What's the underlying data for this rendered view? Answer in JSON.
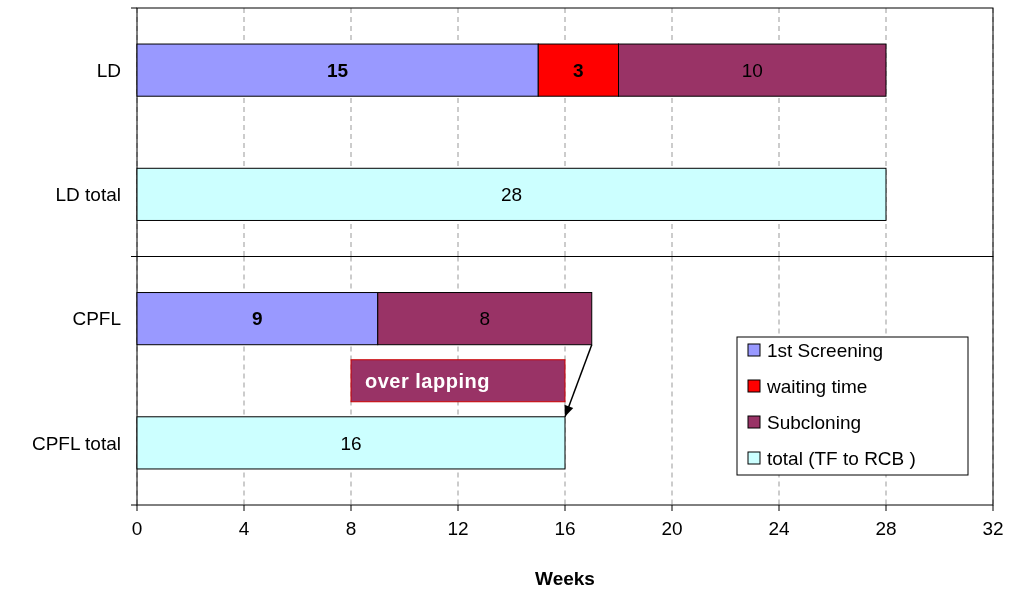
{
  "chart_data": [
    {
      "type": "bar",
      "orientation": "horizontal",
      "stacked": true,
      "categories": [
        "LD",
        "LD total"
      ],
      "series": [
        {
          "color": "#9999ff",
          "values": [
            15,
            null
          ]
        },
        {
          "color": "#ff0000",
          "values": [
            3,
            null
          ]
        },
        {
          "color": "#993366",
          "values": [
            10,
            null
          ]
        },
        {
          "color": "#ccffff",
          "values": [
            null,
            28
          ]
        }
      ],
      "xlim": [
        0,
        32
      ],
      "xticks": [
        0,
        4,
        8,
        12,
        16,
        20,
        24,
        28,
        32
      ],
      "grid": "x",
      "tick_labels": "y",
      "data_labels": true
    },
    {
      "type": "bar",
      "orientation": "horizontal",
      "stacked": true,
      "xlabel": "Weeks",
      "categories": [
        "CPFL",
        "CPFL total"
      ],
      "series": [
        {
          "name": "1st Screening",
          "color": "#9999ff",
          "values": [
            9,
            null
          ]
        },
        {
          "name": "waiting time",
          "color": "#ff0000",
          "values": [
            null,
            null
          ]
        },
        {
          "name": "Subcloning",
          "color": "#993366",
          "values": [
            8,
            null
          ]
        },
        {
          "name": "total (TF to RCB )",
          "color": "#ccffff",
          "values": [
            null,
            16
          ]
        }
      ],
      "xlim": [
        0,
        32
      ],
      "xticks": [
        0,
        4,
        8,
        12,
        16,
        20,
        24,
        28,
        32
      ],
      "grid": "x",
      "legend": "bottom right",
      "data_labels": true,
      "annotations": [
        "over lapping"
      ]
    }
  ]
}
